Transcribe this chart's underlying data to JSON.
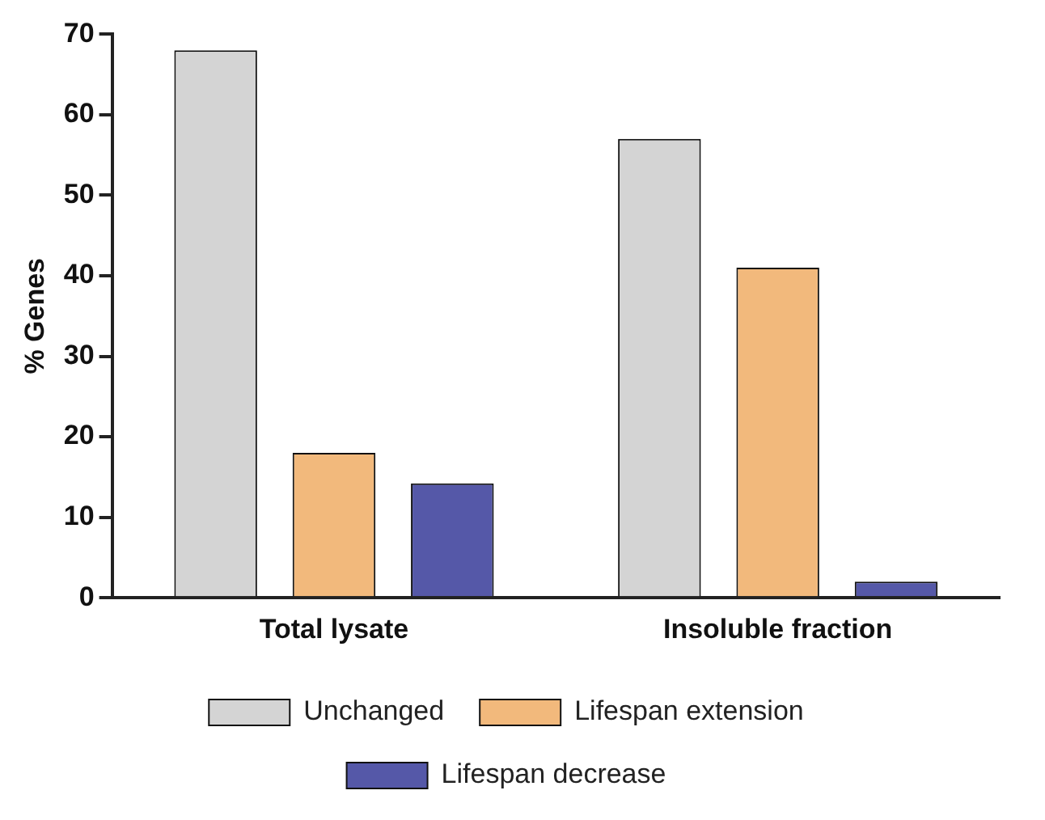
{
  "chart_data": {
    "type": "bar",
    "ylabel": "% Genes",
    "categories": [
      "Total lysate",
      "Insoluble fraction"
    ],
    "series": [
      {
        "name": "Unchanged",
        "color": "#d4d4d4",
        "values": [
          68,
          57
        ]
      },
      {
        "name": "Lifespan extension",
        "color": "#f2b97c",
        "values": [
          18,
          41
        ]
      },
      {
        "name": "Lifespan decrease",
        "color": "#5558a8",
        "values": [
          14.2,
          2
        ]
      }
    ],
    "ylim": [
      0,
      70
    ],
    "yticks": [
      0,
      10,
      20,
      30,
      40,
      50,
      60,
      70
    ],
    "grid": false,
    "legend": "bottom"
  }
}
